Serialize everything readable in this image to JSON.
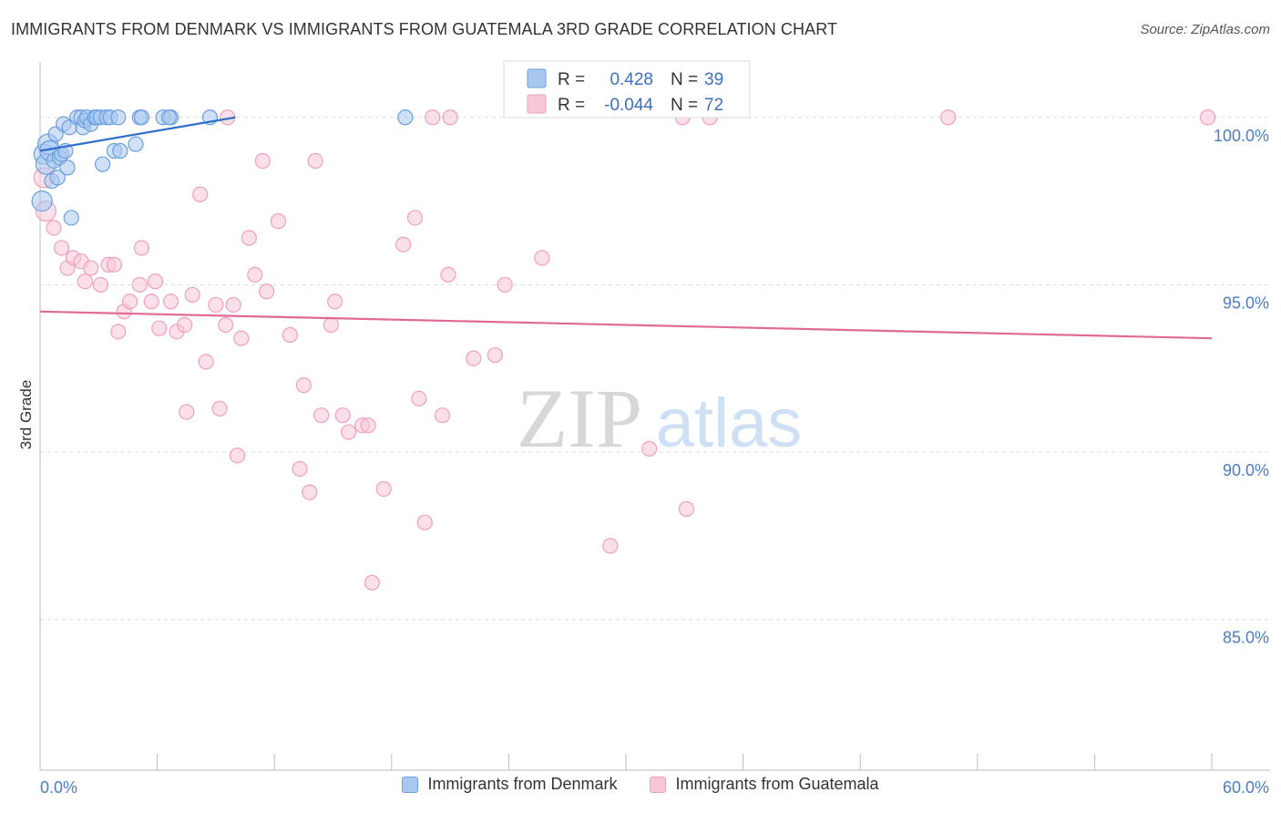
{
  "chart_data": {
    "type": "scatter",
    "title": "IMMIGRANTS FROM DENMARK VS IMMIGRANTS FROM GUATEMALA 3RD GRADE CORRELATION CHART",
    "source": "Source: ZipAtlas.com",
    "watermark": {
      "zip": "ZIP",
      "atlas": "atlas"
    },
    "ylabel": "3rd Grade",
    "xlim": [
      0,
      60
    ],
    "ylim": [
      80.5,
      101.6
    ],
    "x_tick_labels": [
      "0.0%",
      "60.0%"
    ],
    "y_ticks": [
      {
        "value": 100,
        "label": "100.0%"
      },
      {
        "value": 95,
        "label": "95.0%"
      },
      {
        "value": 90,
        "label": "90.0%"
      },
      {
        "value": 85,
        "label": "85.0%"
      }
    ],
    "series": [
      {
        "name": "Immigrants from Denmark",
        "color": "#6a9fe0",
        "fill": "#a9c8f0",
        "line_color": "#2f6fcc",
        "R": "0.428",
        "N": "39",
        "trend": [
          [
            0,
            99.0
          ],
          [
            10,
            100.0
          ]
        ],
        "points": [
          [
            0.2,
            98.9
          ],
          [
            0.3,
            98.6
          ],
          [
            0.4,
            99.2
          ],
          [
            0.5,
            99.0
          ],
          [
            0.6,
            98.1
          ],
          [
            0.7,
            98.7
          ],
          [
            0.8,
            99.5
          ],
          [
            0.9,
            98.2
          ],
          [
            1.0,
            98.8
          ],
          [
            1.1,
            98.9
          ],
          [
            1.2,
            99.8
          ],
          [
            1.3,
            99.0
          ],
          [
            1.4,
            98.5
          ],
          [
            1.5,
            99.7
          ],
          [
            1.6,
            97.0
          ],
          [
            1.9,
            100.0
          ],
          [
            2.1,
            100.0
          ],
          [
            2.2,
            99.7
          ],
          [
            2.3,
            99.9
          ],
          [
            2.4,
            100.0
          ],
          [
            2.6,
            99.8
          ],
          [
            2.8,
            100.0
          ],
          [
            2.9,
            100.0
          ],
          [
            3.1,
            100.0
          ],
          [
            3.2,
            98.6
          ],
          [
            3.4,
            100.0
          ],
          [
            3.6,
            100.0
          ],
          [
            3.8,
            99.0
          ],
          [
            4.0,
            100.0
          ],
          [
            4.1,
            99.0
          ],
          [
            4.9,
            99.2
          ],
          [
            5.1,
            100.0
          ],
          [
            6.3,
            100.0
          ],
          [
            6.7,
            100.0
          ],
          [
            8.7,
            100.0
          ],
          [
            18.7,
            100.0
          ],
          [
            0.1,
            97.5
          ],
          [
            5.2,
            100.0
          ],
          [
            6.6,
            100.0
          ]
        ]
      },
      {
        "name": "Immigrants from Guatemala",
        "color": "#f0a0bc",
        "fill": "#f7c7d7",
        "line_color": "#e06a94",
        "R": "-0.044",
        "N": "72",
        "trend": [
          [
            0,
            94.2
          ],
          [
            60,
            93.4
          ]
        ],
        "points": [
          [
            0.2,
            98.2
          ],
          [
            0.3,
            97.2
          ],
          [
            0.7,
            96.7
          ],
          [
            1.1,
            96.1
          ],
          [
            1.4,
            95.5
          ],
          [
            1.7,
            95.8
          ],
          [
            2.1,
            95.7
          ],
          [
            2.3,
            95.1
          ],
          [
            2.6,
            95.5
          ],
          [
            3.1,
            95.0
          ],
          [
            3.5,
            95.6
          ],
          [
            3.8,
            95.6
          ],
          [
            4.0,
            93.6
          ],
          [
            4.3,
            94.2
          ],
          [
            4.6,
            94.5
          ],
          [
            5.1,
            95.0
          ],
          [
            5.2,
            96.1
          ],
          [
            5.7,
            94.5
          ],
          [
            5.9,
            95.1
          ],
          [
            6.1,
            93.7
          ],
          [
            6.7,
            94.5
          ],
          [
            7.0,
            93.6
          ],
          [
            7.4,
            93.8
          ],
          [
            7.5,
            91.2
          ],
          [
            7.8,
            94.7
          ],
          [
            8.2,
            97.7
          ],
          [
            8.5,
            92.7
          ],
          [
            9.0,
            94.4
          ],
          [
            9.2,
            91.3
          ],
          [
            9.5,
            93.8
          ],
          [
            9.9,
            94.4
          ],
          [
            10.1,
            89.9
          ],
          [
            10.3,
            93.4
          ],
          [
            10.7,
            96.4
          ],
          [
            11.0,
            95.3
          ],
          [
            11.4,
            98.7
          ],
          [
            11.6,
            94.8
          ],
          [
            12.2,
            96.9
          ],
          [
            12.8,
            93.5
          ],
          [
            13.3,
            89.5
          ],
          [
            13.5,
            92.0
          ],
          [
            13.8,
            88.8
          ],
          [
            14.1,
            98.7
          ],
          [
            14.4,
            91.1
          ],
          [
            14.9,
            93.8
          ],
          [
            15.1,
            94.5
          ],
          [
            15.5,
            91.1
          ],
          [
            15.8,
            90.6
          ],
          [
            16.5,
            90.8
          ],
          [
            16.8,
            90.8
          ],
          [
            17.0,
            86.1
          ],
          [
            17.6,
            88.9
          ],
          [
            18.6,
            96.2
          ],
          [
            19.2,
            97.0
          ],
          [
            19.4,
            91.6
          ],
          [
            19.7,
            87.9
          ],
          [
            20.1,
            100.0
          ],
          [
            20.6,
            91.1
          ],
          [
            20.9,
            95.3
          ],
          [
            21.0,
            100.0
          ],
          [
            22.2,
            92.8
          ],
          [
            23.3,
            92.9
          ],
          [
            23.8,
            95.0
          ],
          [
            25.7,
            95.8
          ],
          [
            29.2,
            87.2
          ],
          [
            31.2,
            90.1
          ],
          [
            32.9,
            100.0
          ],
          [
            33.1,
            88.3
          ],
          [
            34.3,
            100.0
          ],
          [
            46.5,
            100.0
          ],
          [
            59.8,
            100.0
          ],
          [
            9.6,
            100.0
          ]
        ]
      }
    ]
  }
}
